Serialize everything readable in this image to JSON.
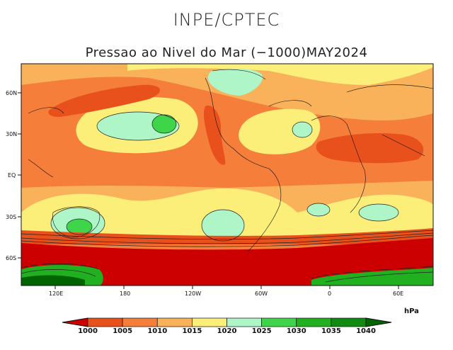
{
  "header": {
    "org": "INPE/CPTEC",
    "subtitle": "Pressao ao Nivel do Mar (−1000)MAY2024"
  },
  "axes": {
    "lat_labels": [
      "60N",
      "30N",
      "EQ",
      "30S",
      "60S"
    ],
    "lon_labels": [
      "120E",
      "180",
      "120W",
      "60W",
      "0",
      "60E"
    ]
  },
  "colorbar": {
    "unit": "hPa",
    "levels": [
      "1000",
      "1005",
      "1010",
      "1015",
      "1020",
      "1025",
      "1030",
      "1035",
      "1040"
    ],
    "colors": [
      "#cc0000",
      "#e8501c",
      "#f47e3a",
      "#f9b15a",
      "#fbef7a",
      "#aef5c8",
      "#3fd54a",
      "#20b020",
      "#108a10",
      "#006400"
    ]
  },
  "fields": {
    "c_low": "#cc0000",
    "c_1000": "#e8501c",
    "c_1005": "#f47e3a",
    "c_1010": "#f9b15a",
    "c_1015": "#fbef7a",
    "c_1020": "#aef5c8",
    "c_1025": "#3fd54a",
    "c_1030": "#20b020",
    "c_1040": "#006400"
  }
}
